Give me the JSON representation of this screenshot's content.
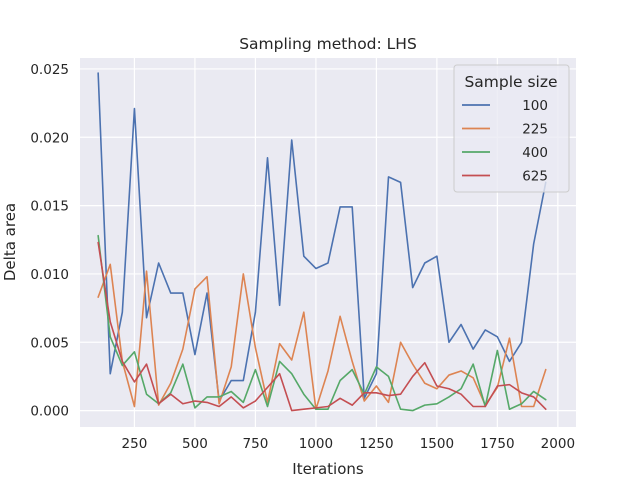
{
  "chart_data": {
    "type": "line",
    "title": "Sampling method: LHS",
    "xlabel": "Iterations",
    "ylabel": "Delta area",
    "xlim": [
      25,
      2075
    ],
    "ylim": [
      -0.0012,
      0.0258
    ],
    "xticks": [
      250,
      500,
      750,
      1000,
      1250,
      1500,
      1750,
      2000
    ],
    "yticks": [
      0.0,
      0.005,
      0.01,
      0.015,
      0.02,
      0.025
    ],
    "xtick_labels": [
      "250",
      "500",
      "750",
      "1000",
      "1250",
      "1500",
      "1750",
      "2000"
    ],
    "ytick_labels": [
      "0.000",
      "0.005",
      "0.010",
      "0.015",
      "0.020",
      "0.025"
    ],
    "grid": true,
    "legend": {
      "title": "Sample size",
      "placement": "top-right"
    },
    "x": [
      100,
      150,
      200,
      250,
      300,
      350,
      400,
      450,
      500,
      550,
      600,
      650,
      700,
      750,
      800,
      850,
      900,
      950,
      1000,
      1050,
      1100,
      1150,
      1200,
      1250,
      1300,
      1350,
      1400,
      1450,
      1500,
      1550,
      1600,
      1650,
      1700,
      1750,
      1800,
      1850,
      1900,
      1950
    ],
    "series": [
      {
        "name": "100",
        "color": "#4c72b0",
        "values": [
          0.0247,
          0.0027,
          0.0072,
          0.0221,
          0.0068,
          0.0108,
          0.0086,
          0.0086,
          0.0041,
          0.0086,
          0.0007,
          0.0022,
          0.0022,
          0.0072,
          0.0185,
          0.0077,
          0.0198,
          0.0113,
          0.0104,
          0.0108,
          0.0149,
          0.0149,
          0.0009,
          0.0027,
          0.0171,
          0.0167,
          0.009,
          0.0108,
          0.0113,
          0.005,
          0.0063,
          0.0045,
          0.0059,
          0.0054,
          0.0036,
          0.005,
          0.0122,
          0.0167
        ]
      },
      {
        "name": "225",
        "color": "#dd8452",
        "values": [
          0.0083,
          0.0107,
          0.0036,
          0.0003,
          0.0102,
          0.0004,
          0.002,
          0.0045,
          0.0089,
          0.0098,
          0.0005,
          0.0032,
          0.01,
          0.0046,
          0.0006,
          0.0049,
          0.0037,
          0.0072,
          0.0001,
          0.0029,
          0.0069,
          0.0036,
          0.0007,
          0.0018,
          0.0006,
          0.005,
          0.0034,
          0.002,
          0.0016,
          0.0026,
          0.0029,
          0.0024,
          0.0004,
          0.0017,
          0.0053,
          0.0003,
          0.0003,
          0.003
        ]
      },
      {
        "name": "400",
        "color": "#55a868",
        "values": [
          0.0128,
          0.0054,
          0.0033,
          0.0043,
          0.0012,
          0.0005,
          0.0013,
          0.0034,
          0.0002,
          0.001,
          0.001,
          0.0014,
          0.0006,
          0.003,
          0.0003,
          0.0036,
          0.0027,
          0.0012,
          0.0001,
          0.0001,
          0.0022,
          0.003,
          0.0012,
          0.0032,
          0.0025,
          0.0001,
          0.0,
          0.0004,
          0.0005,
          0.001,
          0.0016,
          0.0034,
          0.0003,
          0.0044,
          0.0001,
          0.0005,
          0.0014,
          0.0008
        ]
      },
      {
        "name": "625",
        "color": "#c44e52",
        "values": [
          0.0123,
          0.0065,
          0.0036,
          0.0021,
          0.0034,
          0.0005,
          0.0012,
          0.0005,
          0.0007,
          0.0006,
          0.0003,
          0.001,
          0.0002,
          0.0007,
          0.0017,
          0.0027,
          0.0,
          0.0001,
          0.0002,
          0.0003,
          0.0009,
          0.0004,
          0.0013,
          0.0013,
          0.0011,
          0.0012,
          0.0025,
          0.0035,
          0.0018,
          0.0016,
          0.0012,
          0.0003,
          0.0003,
          0.0018,
          0.0019,
          0.0013,
          0.001,
          0.0001
        ]
      }
    ]
  }
}
